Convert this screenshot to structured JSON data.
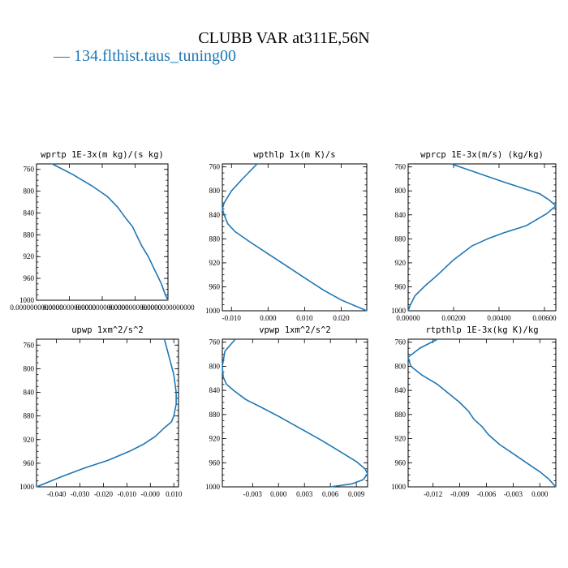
{
  "figure": {
    "title": "CLUBB VAR at311E,56N",
    "legend": [
      {
        "label": "— 134.flthist.taus_tuning00",
        "color": "#1f77b4"
      }
    ]
  },
  "chart_data": [
    {
      "type": "line",
      "title": "wprtp  1E-3x(m kg)/(s kg)",
      "xticks": [
        "0.0000000000000",
        "0.0000000000000",
        "0.0000000000000",
        "0.0000000000000",
        "0.0000000000000"
      ],
      "yticks": [
        "760",
        "800",
        "840",
        "880",
        "920",
        "960",
        "1000"
      ],
      "xlim": [
        0,
        1
      ],
      "ylim": [
        1000,
        750
      ],
      "y_axis": "pressure (inverted)",
      "series": [
        {
          "color": "#1f77b4",
          "points": [
            [
              0.12,
              750
            ],
            [
              0.28,
              770
            ],
            [
              0.42,
              790
            ],
            [
              0.54,
              810
            ],
            [
              0.62,
              830
            ],
            [
              0.68,
              850
            ],
            [
              0.73,
              865
            ],
            [
              0.76,
              880
            ],
            [
              0.8,
              900
            ],
            [
              0.85,
              920
            ],
            [
              0.9,
              945
            ],
            [
              0.95,
              970
            ],
            [
              0.98,
              990
            ],
            [
              1.0,
              1000
            ]
          ]
        }
      ]
    },
    {
      "type": "line",
      "title": "wpthlp  1x(m K)/s",
      "xticks": [
        "-0.010",
        "0.000",
        "0.010",
        "0.020"
      ],
      "yticks": [
        "760",
        "800",
        "840",
        "880",
        "920",
        "960",
        "1000"
      ],
      "xlim": [
        -0.0125,
        0.027
      ],
      "ylim": [
        1000,
        755
      ],
      "series": [
        {
          "color": "#1f77b4",
          "points": [
            [
              -0.003,
              755
            ],
            [
              -0.007,
              780
            ],
            [
              -0.01,
              800
            ],
            [
              -0.012,
              820
            ],
            [
              -0.0125,
              830
            ],
            [
              -0.012,
              840
            ],
            [
              -0.011,
              855
            ],
            [
              -0.009,
              868
            ],
            [
              -0.005,
              885
            ],
            [
              0.0,
              905
            ],
            [
              0.005,
              925
            ],
            [
              0.01,
              945
            ],
            [
              0.015,
              965
            ],
            [
              0.02,
              982
            ],
            [
              0.027,
              1000
            ]
          ]
        }
      ]
    },
    {
      "type": "line",
      "title": "wprcp  1E-3x(m/s) (kg/kg)",
      "xticks": [
        "0.00000",
        "0.00200",
        "0.00400",
        "0.00600"
      ],
      "yticks": [
        "760",
        "800",
        "840",
        "880",
        "920",
        "960",
        "1000"
      ],
      "xlim": [
        0,
        0.0065
      ],
      "ylim": [
        1000,
        755
      ],
      "series": [
        {
          "color": "#1f77b4",
          "points": [
            [
              0.0019,
              755
            ],
            [
              0.0042,
              785
            ],
            [
              0.0058,
              805
            ],
            [
              0.0062,
              815
            ],
            [
              0.0065,
              825
            ],
            [
              0.0061,
              838
            ],
            [
              0.0052,
              858
            ],
            [
              0.0042,
              870
            ],
            [
              0.0035,
              880
            ],
            [
              0.0028,
              892
            ],
            [
              0.002,
              915
            ],
            [
              0.0013,
              940
            ],
            [
              0.0007,
              960
            ],
            [
              0.0003,
              975
            ],
            [
              0.0001,
              990
            ],
            [
              0.0,
              1000
            ]
          ]
        }
      ]
    },
    {
      "type": "line",
      "title": "upwp  1xm^2/s^2",
      "xticks": [
        "-0.040",
        "-0.030",
        "-0.020",
        "-0.010",
        "-0.000",
        "0.010"
      ],
      "yticks": [
        "760",
        "800",
        "840",
        "880",
        "920",
        "960",
        "1000"
      ],
      "xlim": [
        -0.0485,
        0.012
      ],
      "ylim": [
        1000,
        750
      ],
      "series": [
        {
          "color": "#1f77b4",
          "points": [
            [
              0.006,
              750
            ],
            [
              0.008,
              780
            ],
            [
              0.01,
              810
            ],
            [
              0.011,
              840
            ],
            [
              0.011,
              860
            ],
            [
              0.01,
              880
            ],
            [
              0.009,
              890
            ],
            [
              0.006,
              900
            ],
            [
              0.002,
              915
            ],
            [
              -0.003,
              928
            ],
            [
              -0.009,
              940
            ],
            [
              -0.018,
              955
            ],
            [
              -0.028,
              968
            ],
            [
              -0.038,
              983
            ],
            [
              -0.0485,
              1000
            ]
          ]
        }
      ]
    },
    {
      "type": "line",
      "title": "vpwp  1xm^2/s^2",
      "xticks": [
        "-0.003",
        "0.000",
        "0.003",
        "0.006",
        "0.009"
      ],
      "yticks": [
        "760",
        "800",
        "840",
        "880",
        "920",
        "960",
        "1000"
      ],
      "xlim": [
        -0.0065,
        0.0103
      ],
      "ylim": [
        1000,
        755
      ],
      "series": [
        {
          "color": "#1f77b4",
          "points": [
            [
              -0.005,
              755
            ],
            [
              -0.0062,
              775
            ],
            [
              -0.0065,
              800
            ],
            [
              -0.0064,
              818
            ],
            [
              -0.006,
              830
            ],
            [
              -0.0052,
              840
            ],
            [
              -0.0038,
              855
            ],
            [
              -0.002,
              868
            ],
            [
              0.0,
              883
            ],
            [
              0.0025,
              903
            ],
            [
              0.005,
              923
            ],
            [
              0.0073,
              943
            ],
            [
              0.009,
              958
            ],
            [
              0.01,
              970
            ],
            [
              0.0103,
              978
            ],
            [
              0.0098,
              988
            ],
            [
              0.0085,
              995
            ],
            [
              0.006,
              1000
            ]
          ]
        }
      ]
    },
    {
      "type": "line",
      "title": "rtpthlp  1E-3x(kg K)/kg",
      "xticks": [
        "-0.012",
        "-0.009",
        "-0.006",
        "-0.003",
        "0.000"
      ],
      "yticks": [
        "760",
        "800",
        "840",
        "880",
        "920",
        "960",
        "1000"
      ],
      "xlim": [
        -0.0148,
        0.0018
      ],
      "ylim": [
        1000,
        755
      ],
      "series": [
        {
          "color": "#1f77b4",
          "points": [
            [
              -0.0115,
              755
            ],
            [
              -0.0135,
              770
            ],
            [
              -0.0148,
              785
            ],
            [
              -0.0145,
              800
            ],
            [
              -0.0132,
              815
            ],
            [
              -0.0115,
              830
            ],
            [
              -0.01,
              848
            ],
            [
              -0.009,
              860
            ],
            [
              -0.008,
              875
            ],
            [
              -0.0074,
              888
            ],
            [
              -0.0065,
              900
            ],
            [
              -0.0058,
              913
            ],
            [
              -0.0045,
              930
            ],
            [
              -0.003,
              945
            ],
            [
              -0.0015,
              960
            ],
            [
              0.0,
              975
            ],
            [
              0.001,
              987
            ],
            [
              0.0018,
              1000
            ]
          ]
        }
      ]
    }
  ]
}
